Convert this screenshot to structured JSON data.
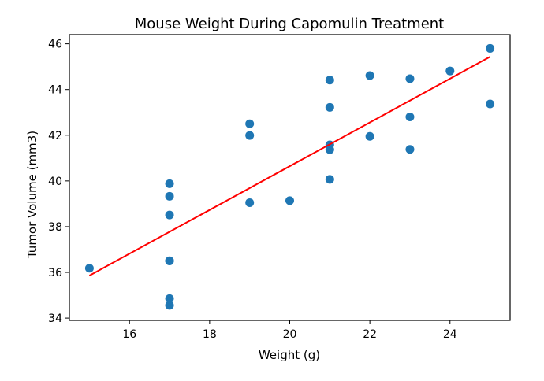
{
  "chart_data": {
    "type": "scatter",
    "title": "Mouse Weight During Capomulin Treatment",
    "xlabel": "Weight (g)",
    "ylabel": "Tumor Volume (mm3)",
    "xlim": [
      14.5,
      25.5
    ],
    "ylim": [
      33.9,
      46.4
    ],
    "xticks": [
      16,
      18,
      20,
      22,
      24
    ],
    "yticks": [
      34,
      36,
      38,
      40,
      42,
      44,
      46
    ],
    "grid": false,
    "series": [
      {
        "type": "scatter",
        "color": "#1f77b4",
        "points": [
          {
            "x": 15,
            "y": 36.18
          },
          {
            "x": 17,
            "y": 39.88
          },
          {
            "x": 17,
            "y": 39.33
          },
          {
            "x": 17,
            "y": 38.51
          },
          {
            "x": 17,
            "y": 36.51
          },
          {
            "x": 17,
            "y": 36.5
          },
          {
            "x": 17,
            "y": 34.85
          },
          {
            "x": 17,
            "y": 34.56
          },
          {
            "x": 19,
            "y": 42.5
          },
          {
            "x": 19,
            "y": 41.99
          },
          {
            "x": 19,
            "y": 39.05
          },
          {
            "x": 20,
            "y": 39.14
          },
          {
            "x": 21,
            "y": 44.41
          },
          {
            "x": 21,
            "y": 43.22
          },
          {
            "x": 21,
            "y": 41.58
          },
          {
            "x": 21,
            "y": 41.37
          },
          {
            "x": 21,
            "y": 40.07
          },
          {
            "x": 22,
            "y": 44.61
          },
          {
            "x": 22,
            "y": 41.95
          },
          {
            "x": 23,
            "y": 44.47
          },
          {
            "x": 23,
            "y": 42.8
          },
          {
            "x": 23,
            "y": 41.38
          },
          {
            "x": 24,
            "y": 44.81
          },
          {
            "x": 25,
            "y": 45.8
          },
          {
            "x": 25,
            "y": 43.37
          }
        ]
      },
      {
        "type": "line",
        "color": "#ff0000",
        "points": [
          {
            "x": 15,
            "y": 35.86
          },
          {
            "x": 25,
            "y": 45.43
          }
        ]
      }
    ]
  }
}
